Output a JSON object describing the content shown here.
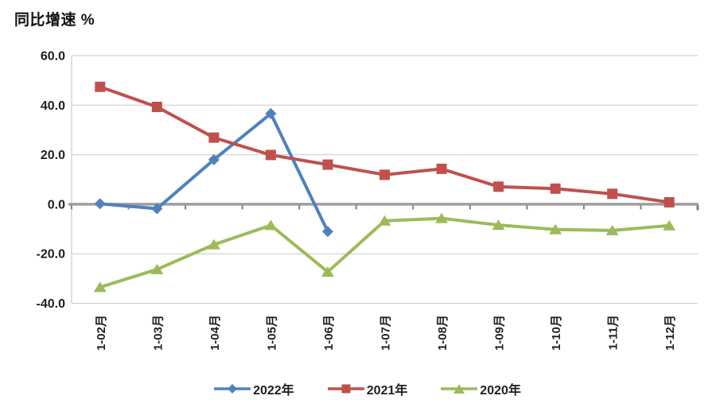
{
  "page": {
    "background": "#ffffff"
  },
  "chart_data": {
    "type": "line",
    "title": "同比增速 %",
    "categories": [
      "1-02月",
      "1-03月",
      "1-04月",
      "1-05月",
      "1-06月",
      "1-07月",
      "1-08月",
      "1-09月",
      "1-10月",
      "1-11月",
      "1-12月"
    ],
    "series": [
      {
        "name": "2022年",
        "color": "#4F81BD",
        "marker": "diamond",
        "values": [
          0.2,
          -1.8,
          18.0,
          36.6,
          -11.0,
          null,
          null,
          null,
          null,
          null,
          null
        ]
      },
      {
        "name": "2021年",
        "color": "#C0504D",
        "marker": "square",
        "values": [
          47.4,
          39.3,
          26.9,
          19.9,
          16.0,
          11.9,
          14.3,
          7.1,
          6.3,
          4.2,
          0.8
        ]
      },
      {
        "name": "2020年",
        "color": "#9BBB59",
        "marker": "triangle",
        "values": [
          -33.5,
          -26.3,
          -16.3,
          -8.5,
          -27.3,
          -6.7,
          -5.7,
          -8.4,
          -10.2,
          -10.6,
          -8.6
        ]
      }
    ],
    "ylim": [
      -40,
      60
    ],
    "yticks": [
      60,
      40,
      20,
      0,
      -20,
      -40
    ],
    "ytick_labels": [
      "60.0",
      "40.0",
      "20.0",
      "0.0",
      "-20.0",
      "-40.0"
    ],
    "grid": true,
    "legend_position": "bottom",
    "axis_colors": {
      "gridline": "#C9C9C9",
      "zero_line": "#9E9E9E",
      "tick": "#7F7F7F",
      "axis_line": "#BFBFBF",
      "label": "#1F1F1F"
    }
  }
}
